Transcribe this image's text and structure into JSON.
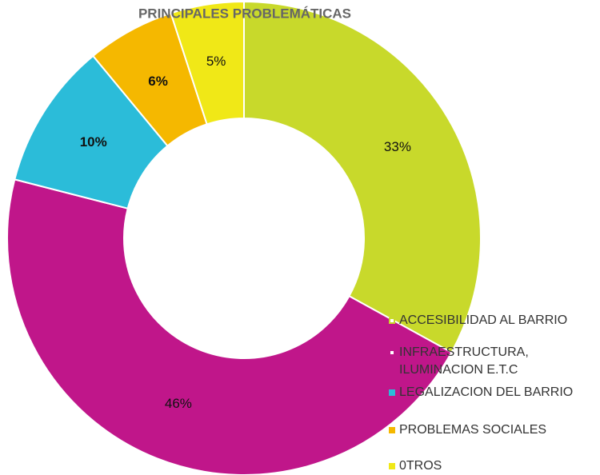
{
  "chart_data": {
    "type": "donut",
    "title": "PRINCIPALES PROBLEMÁTICAS",
    "categories": [
      "ACCESIBILIDAD AL BARRIO",
      "INFRAESTRUCTURA, ILUMINACION E.T.C",
      "LEGALIZACION DEL BARRIO",
      "PROBLEMAS SOCIALES",
      "0TROS"
    ],
    "values": [
      33,
      46,
      10,
      6,
      5
    ],
    "value_labels": [
      "33%",
      "46%",
      "10%",
      "6%",
      "5%"
    ],
    "colors": [
      "#c8d92b",
      "#c0168a",
      "#2bbcd9",
      "#f5b800",
      "#f0e817"
    ],
    "legend": "right"
  }
}
